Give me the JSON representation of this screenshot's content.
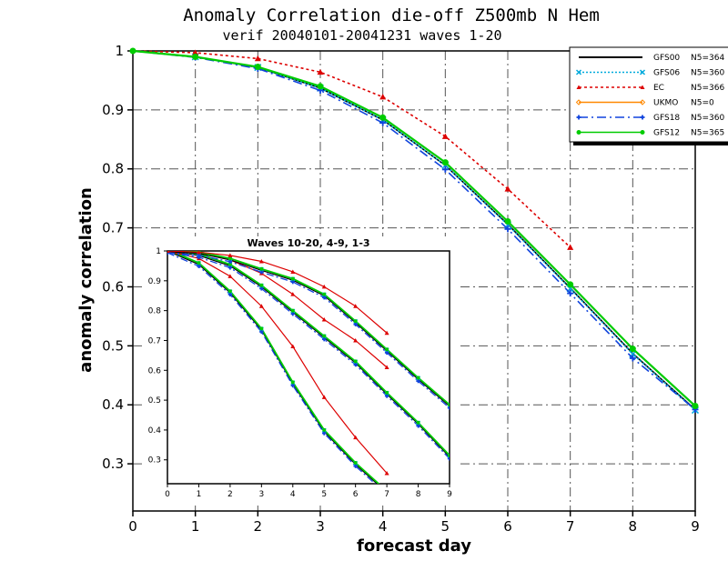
{
  "chart_data": [
    {
      "id": "main",
      "type": "line",
      "title": "Anomaly Correlation die-off  Z500mb N Hem",
      "subtitle": "verif 20040101-20041231 waves 1-20",
      "xlabel": "forecast day",
      "ylabel": "anomaly correlation",
      "xlim": [
        0,
        9
      ],
      "ylim": [
        0.22,
        1.0
      ],
      "xticks": [
        "0",
        "1",
        "2",
        "3",
        "4",
        "5",
        "6",
        "7",
        "8",
        "9"
      ],
      "yticks": [
        "1",
        "0.9",
        "0.8",
        "0.7",
        "0.6",
        "0.5",
        "0.4",
        "0.3"
      ],
      "ytick_values": [
        1.0,
        0.9,
        0.8,
        0.7,
        0.6,
        0.5,
        0.4,
        0.3
      ],
      "grid": true,
      "legend_position": "top-right",
      "series": [
        {
          "name": "GFS00",
          "count": "N5=364",
          "color": "#000000",
          "dash": "",
          "marker": "none",
          "x": [
            0,
            1,
            2,
            3,
            4,
            5,
            6,
            7,
            8,
            9
          ],
          "y": [
            1.0,
            0.99,
            0.972,
            0.937,
            0.883,
            0.806,
            0.706,
            0.598,
            0.487,
            0.392
          ]
        },
        {
          "name": "GFS06",
          "count": "N5=360",
          "color": "#00aadd",
          "dash": "2,2",
          "marker": "x",
          "x": [
            0,
            1,
            2,
            3,
            4,
            5,
            6,
            7,
            8,
            9
          ],
          "y": [
            1.0,
            0.99,
            0.972,
            0.937,
            0.883,
            0.806,
            0.705,
            0.597,
            0.486,
            0.391
          ]
        },
        {
          "name": "EC",
          "count": "N5=366",
          "color": "#dd0000",
          "dash": "3,3",
          "marker": "triangle",
          "x": [
            0,
            1,
            2,
            3,
            4,
            5,
            6,
            7
          ],
          "y": [
            1.0,
            0.997,
            0.987,
            0.964,
            0.922,
            0.855,
            0.766,
            0.667
          ]
        },
        {
          "name": "UKMO",
          "count": "N5=0",
          "color": "#ff8800",
          "dash": "",
          "marker": "diamond",
          "x": [],
          "y": []
        },
        {
          "name": "GFS18",
          "count": "N5=360",
          "color": "#1144dd",
          "dash": "10,4,2,4",
          "marker": "plus",
          "x": [
            0,
            1,
            2,
            3,
            4,
            5,
            6,
            7,
            8,
            9
          ],
          "y": [
            1.0,
            0.989,
            0.97,
            0.933,
            0.878,
            0.799,
            0.698,
            0.589,
            0.479,
            0.392
          ]
        },
        {
          "name": "GFS12",
          "count": "N5=365",
          "color": "#00cc00",
          "dash": "",
          "marker": "dot",
          "x": [
            0,
            1,
            2,
            3,
            4,
            5,
            6,
            7,
            8,
            9
          ],
          "y": [
            1.0,
            0.99,
            0.973,
            0.94,
            0.887,
            0.811,
            0.711,
            0.604,
            0.495,
            0.398
          ]
        }
      ]
    },
    {
      "id": "inset",
      "type": "line",
      "title": "Waves 10-20, 4-9, 1-3",
      "xlim": [
        0,
        9
      ],
      "ylim": [
        0.22,
        1.0
      ],
      "xticks": [
        "0",
        "1",
        "2",
        "3",
        "4",
        "5",
        "6",
        "7",
        "8",
        "9"
      ],
      "yticks": [
        "1",
        "0.9",
        "0.8",
        "0.7",
        "0.6",
        "0.5",
        "0.4",
        "0.3"
      ],
      "ytick_values": [
        1.0,
        0.9,
        0.8,
        0.7,
        0.6,
        0.5,
        0.4,
        0.3
      ],
      "groups": [
        {
          "waves": "10-20",
          "gfs_x": [
            0,
            1,
            2,
            3,
            4,
            5,
            6,
            7
          ],
          "gfs_y": [
            1.0,
            0.955,
            0.86,
            0.735,
            0.555,
            0.395,
            0.285,
            0.19
          ],
          "ec_x": [
            0,
            1,
            2,
            3,
            4,
            5,
            6,
            7
          ],
          "ec_y": [
            1.0,
            0.975,
            0.915,
            0.815,
            0.68,
            0.51,
            0.375,
            0.255
          ]
        },
        {
          "waves": "4-9",
          "gfs_x": [
            0,
            1,
            2,
            3,
            4,
            5,
            6,
            7,
            8,
            9
          ],
          "gfs_y": [
            1.0,
            0.985,
            0.95,
            0.88,
            0.795,
            0.71,
            0.625,
            0.52,
            0.42,
            0.31
          ],
          "ec_x": [
            0,
            1,
            2,
            3,
            4,
            5,
            6,
            7
          ],
          "ec_y": [
            1.0,
            0.993,
            0.97,
            0.925,
            0.855,
            0.77,
            0.7,
            0.61
          ]
        },
        {
          "waves": "1-3",
          "gfs_x": [
            0,
            1,
            2,
            3,
            4,
            5,
            6,
            7,
            8,
            9
          ],
          "gfs_y": [
            1.0,
            0.992,
            0.97,
            0.935,
            0.902,
            0.85,
            0.76,
            0.665,
            0.57,
            0.48
          ],
          "ec_x": [
            0,
            1,
            2,
            3,
            4,
            5,
            6,
            7
          ],
          "ec_y": [
            1.0,
            0.996,
            0.985,
            0.965,
            0.93,
            0.88,
            0.815,
            0.725
          ]
        }
      ]
    }
  ]
}
